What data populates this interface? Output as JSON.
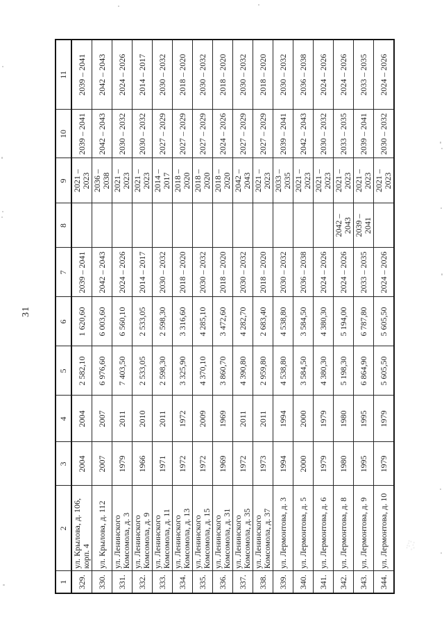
{
  "page": {
    "number": "31"
  },
  "table": {
    "headers": [
      "1",
      "2",
      "3",
      "4",
      "5",
      "6",
      "7",
      "8",
      "9",
      "10",
      "11"
    ],
    "rows": [
      {
        "num": "329.",
        "address": "ул. Крылова, д. 106, корп. 4",
        "c3": "2004",
        "c4": "2004",
        "c5": "2 582,10",
        "c6": "1 620,60",
        "c7": "2039 – 2041",
        "c8": "",
        "c9": "2021 – 2023",
        "c10": "2039 – 2041",
        "c11": "2039 – 2041"
      },
      {
        "num": "330.",
        "address": "ул. Крылова, д. 112",
        "c3": "2007",
        "c4": "2007",
        "c5": "6 976,60",
        "c6": "6 003,60",
        "c7": "2042 – 2043",
        "c8": "",
        "c9": "2036 – 2038",
        "c10": "2042 – 2043",
        "c11": "2042 – 2043"
      },
      {
        "num": "331.",
        "address": "ул. Ленинского Комсомола, д. 3",
        "c3": "1979",
        "c4": "2011",
        "c5": "7 403,50",
        "c6": "6 560,10",
        "c7": "2024 – 2026",
        "c8": "",
        "c9": "2021 – 2023",
        "c10": "2030 – 2032",
        "c11": "2024 – 2026"
      },
      {
        "num": "332.",
        "address": "ул. Ленинского Комсомола, д. 9",
        "c3": "1966",
        "c4": "2010",
        "c5": "2 533,05",
        "c6": "2 533,05",
        "c7": "2014 – 2017",
        "c8": "",
        "c9": "2021 – 2023",
        "c10": "2030 – 2032",
        "c11": "2014 – 2017"
      },
      {
        "num": "333.",
        "address": "ул. Ленинского Комсомола, д. 11",
        "c3": "1971",
        "c4": "2011",
        "c5": "2 598,30",
        "c6": "2 598,30",
        "c7": "2030 – 2032",
        "c8": "",
        "c9": "2014 – 2017",
        "c10": "2027 – 2029",
        "c11": "2030 – 2032"
      },
      {
        "num": "334.",
        "address": "ул. Ленинского Комсомола, д. 13",
        "c3": "1972",
        "c4": "1972",
        "c5": "3 325,90",
        "c6": "3 316,60",
        "c7": "2018 – 2020",
        "c8": "",
        "c9": "2018 – 2020",
        "c10": "2027 – 2029",
        "c11": "2018 – 2020"
      },
      {
        "num": "335.",
        "address": "ул. Ленинского Комсомола, д. 15",
        "c3": "1972",
        "c4": "2009",
        "c5": "4 370,10",
        "c6": "4 285,10",
        "c7": "2030 – 2032",
        "c8": "",
        "c9": "2018 – 2020",
        "c10": "2027 – 2029",
        "c11": "2030 – 2032"
      },
      {
        "num": "336.",
        "address": "ул. Ленинского Комсомола, д. 31",
        "c3": "1969",
        "c4": "1969",
        "c5": "3 860,70",
        "c6": "3 472,60",
        "c7": "2018 – 2020",
        "c8": "",
        "c9": "2018 – 2020",
        "c10": "2024 – 2026",
        "c11": "2018 – 2020"
      },
      {
        "num": "337.",
        "address": "ул. Ленинского Комсомола, д. 35",
        "c3": "1972",
        "c4": "2011",
        "c5": "4 390,80",
        "c6": "4 282,70",
        "c7": "2030 – 2032",
        "c8": "",
        "c9": "2042 – 2043",
        "c10": "2027 – 2029",
        "c11": "2030 – 2032"
      },
      {
        "num": "338.",
        "address": "ул. Ленинского Комсомола, д. 37",
        "c3": "1973",
        "c4": "2011",
        "c5": "2 959,80",
        "c6": "2 683,40",
        "c7": "2018 – 2020",
        "c8": "",
        "c9": "2021 – 2023",
        "c10": "2027 – 2029",
        "c11": "2018 – 2020"
      },
      {
        "num": "339.",
        "address": "ул. Лермонтова, д. 3",
        "c3": "1994",
        "c4": "1994",
        "c5": "4 538,80",
        "c6": "4 538,80",
        "c7": "2030 – 2032",
        "c8": "",
        "c9": "2033 – 2035",
        "c10": "2039 – 2041",
        "c11": "2030 – 2032"
      },
      {
        "num": "340.",
        "address": "ул. Лермонтова, д. 5",
        "c3": "2000",
        "c4": "2000",
        "c5": "3 584,50",
        "c6": "3 584,50",
        "c7": "2036 – 2038",
        "c8": "",
        "c9": "2021 – 2023",
        "c10": "2042 – 2043",
        "c11": "2036 – 2038"
      },
      {
        "num": "341.",
        "address": "ул. Лермонтова, д. 6",
        "c3": "1979",
        "c4": "1979",
        "c5": "4 380,30",
        "c6": "4 380,30",
        "c7": "2024 – 2026",
        "c8": "",
        "c9": "2021 – 2023",
        "c10": "2030 – 2032",
        "c11": "2024 – 2026"
      },
      {
        "num": "342.",
        "address": "ул. Лермонтова, д. 8",
        "c3": "1980",
        "c4": "1980",
        "c5": "5 198,30",
        "c6": "5 194,00",
        "c7": "2024 – 2026",
        "c8": "2042 – 2043",
        "c9": "2021 – 2023",
        "c10": "2033 – 2035",
        "c11": "2024 – 2026"
      },
      {
        "num": "343.",
        "address": "ул. Лермонтова, д. 9",
        "c3": "1995",
        "c4": "1995",
        "c5": "6 864,90",
        "c6": "6 787,80",
        "c7": "2033 – 2035",
        "c8": "2039 – 2041",
        "c9": "2021 – 2023",
        "c10": "2039 – 2041",
        "c11": "2033 – 2035"
      },
      {
        "num": "344.",
        "address": "ул. Лермонтова, д. 10",
        "c3": "1979",
        "c4": "1979",
        "c5": "5 605,50",
        "c6": "5 605,50",
        "c7": "2024 – 2026",
        "c8": "",
        "c9": "2021 – 2023",
        "c10": "2030 – 2032",
        "c11": "2024 – 2026"
      }
    ]
  }
}
